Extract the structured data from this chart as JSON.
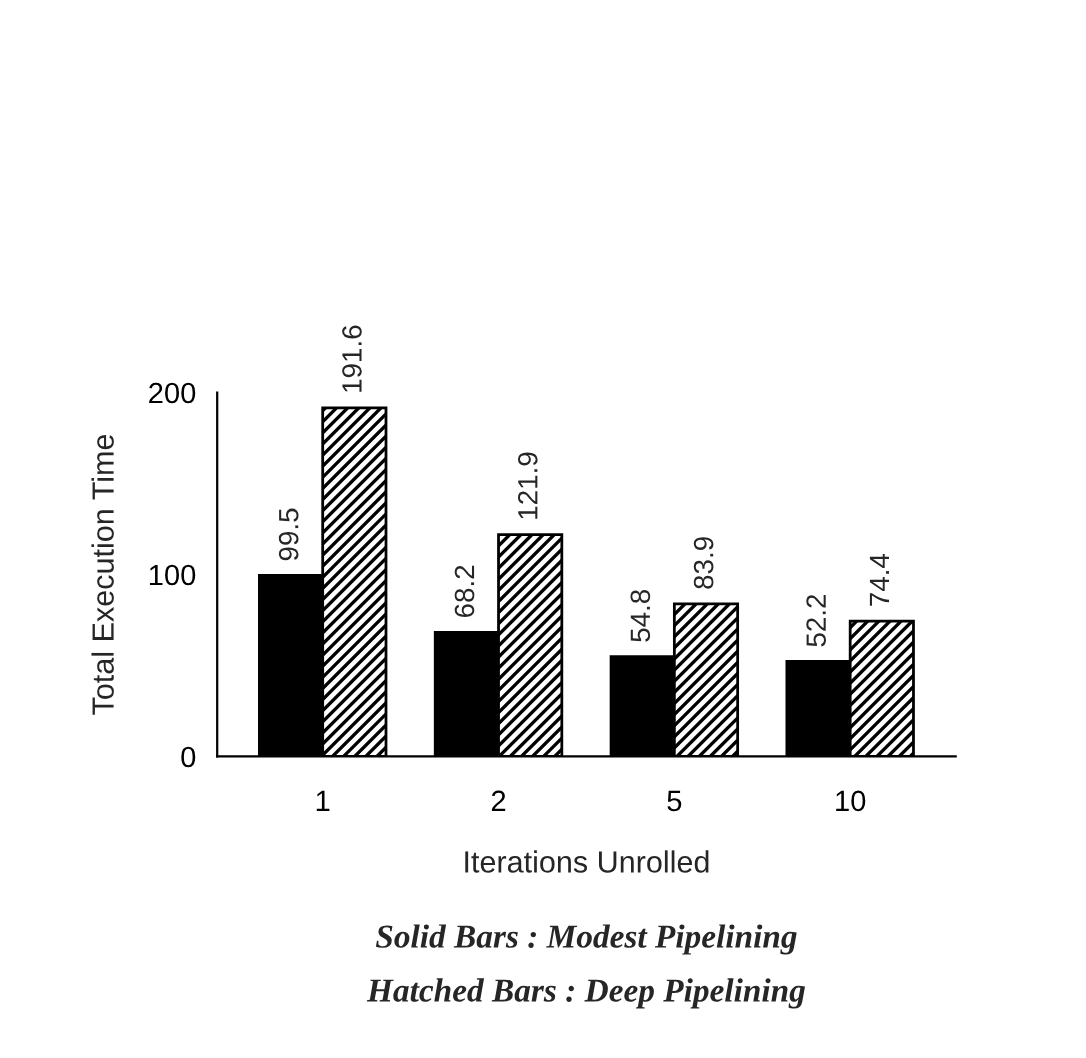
{
  "chart_data": {
    "type": "bar",
    "xlabel": "Iterations Unrolled",
    "ylabel": "Total Execution Time",
    "categories": [
      "1",
      "2",
      "5",
      "10"
    ],
    "series": [
      {
        "color": "#000000",
        "values": [
          99.5,
          68.2,
          54.8,
          52.2
        ]
      },
      {
        "color": "#000000",
        "values": [
          191.6,
          121.9,
          83.9,
          74.4
        ]
      }
    ],
    "ylim": [
      0,
      200
    ],
    "yticks": [
      0,
      100,
      200
    ],
    "data_labels": true,
    "grid": false,
    "legend": false,
    "annotations": [
      "Solid Bars : Modest Pipelining",
      "Hatched Bars : Deep Pipelining"
    ]
  }
}
